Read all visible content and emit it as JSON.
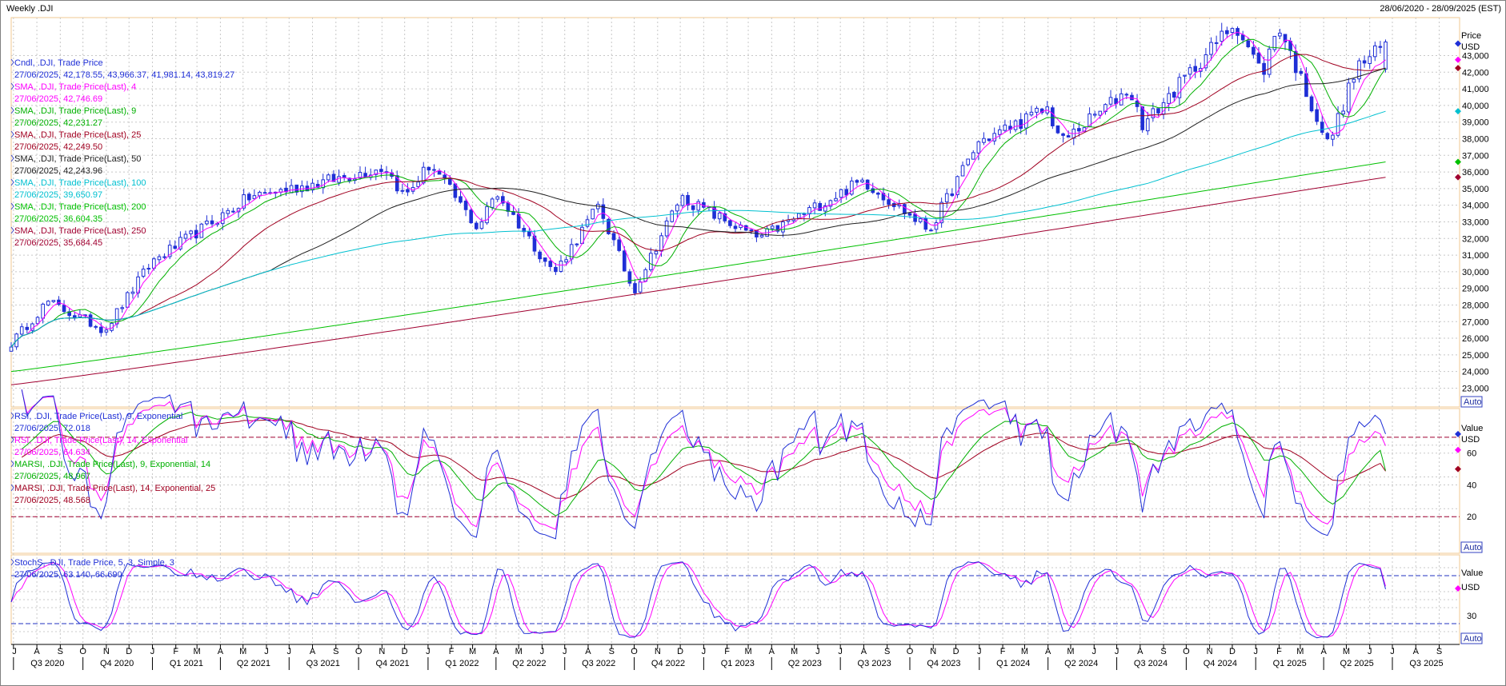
{
  "header": {
    "left_title": "Weekly .DJI",
    "date_range": "28/06/2020 - 28/09/2025 (EST)"
  },
  "colors": {
    "candle": "#1f2fd6",
    "sma4": "#ff00ff",
    "sma9": "#00b000",
    "sma25": "#a00020",
    "sma50": "#202020",
    "sma100": "#00c0d0",
    "sma200": "#00c000",
    "sma250": "#a00030",
    "rsi9": "#1f2fd6",
    "rsi14": "#ff00ff",
    "marsi9": "#00b000",
    "marsi14": "#a00020",
    "stoch_k": "#1f2fd6",
    "stoch_d": "#ff00ff",
    "grid": "#c8c8c8",
    "panel_border": "#f0c890"
  },
  "price_panel": {
    "axis_title": "Price",
    "axis_unit": "USD",
    "auto_label": "Auto",
    "legend": [
      {
        "name": "Cndl, .DJI, Trade Price",
        "value": "27/06/2025, 42,178.55, 43,966.37, 41,981.14, 43,819.27",
        "color_key": "candle"
      },
      {
        "name": "SMA, .DJI, Trade Price(Last), 4",
        "value": "27/06/2025, 42,746.69",
        "color_key": "sma4"
      },
      {
        "name": "SMA, .DJI, Trade Price(Last), 9",
        "value": "27/06/2025, 42,231.27",
        "color_key": "sma9"
      },
      {
        "name": "SMA, .DJI, Trade Price(Last), 25",
        "value": "27/06/2025, 42,249.50",
        "color_key": "sma25"
      },
      {
        "name": "SMA, .DJI, Trade Price(Last), 50",
        "value": "27/06/2025, 42,243.96",
        "color_key": "sma50"
      },
      {
        "name": "SMA, .DJI, Trade Price(Last), 100",
        "value": "27/06/2025, 39,650.97",
        "color_key": "sma100"
      },
      {
        "name": "SMA, .DJI, Trade Price(Last), 200",
        "value": "27/06/2025, 36,604.35",
        "color_key": "sma200"
      },
      {
        "name": "SMA, .DJI, Trade Price(Last), 250",
        "value": "27/06/2025, 35,684.45",
        "color_key": "sma250"
      }
    ],
    "y_ticks": [
      "23,000",
      "24,000",
      "25,000",
      "26,000",
      "27,000",
      "28,000",
      "29,000",
      "30,000",
      "31,000",
      "32,000",
      "33,000",
      "34,000",
      "35,000",
      "36,000",
      "37,000",
      "38,000",
      "39,000",
      "40,000",
      "41,000",
      "42,000",
      "43,000"
    ]
  },
  "rsi_panel": {
    "axis_title": "Value",
    "axis_unit": "USD",
    "auto_label": "Auto",
    "legend": [
      {
        "name": "RSI, .DJI, Trade Price(Last), 9, Exponential",
        "value": "27/06/2025, 72.018",
        "color_key": "rsi9"
      },
      {
        "name": "RSI, .DJI, Trade Price(Last), 14, Exponential",
        "value": "27/06/2025, 64.634",
        "color_key": "rsi14"
      },
      {
        "name": "MARSI, .DJI, Trade Price(Last), 9, Exponential, 14",
        "value": "27/06/2025, 48.967",
        "color_key": "marsi9"
      },
      {
        "name": "MARSI, .DJI, Trade Price(Last), 14, Exponential, 25",
        "value": "27/06/2025, 48.568",
        "color_key": "marsi14"
      }
    ],
    "y_ticks": [
      "20",
      "40",
      "60"
    ]
  },
  "stoch_panel": {
    "axis_title": "Value",
    "axis_unit": "USD",
    "auto_label": "Auto",
    "legend": [
      {
        "name": "StochS, .DJI, Trade Price, 5, 3, Simple, 3",
        "value": "27/06/2025, 63.140, 66.690",
        "color_key": "stoch_k"
      }
    ],
    "y_ticks": [
      "30"
    ]
  },
  "x_axis": {
    "months": [
      "J",
      "A",
      "S",
      "O",
      "N",
      "D",
      "J",
      "F",
      "M",
      "A",
      "M",
      "J",
      "J",
      "A",
      "S",
      "O",
      "N",
      "D",
      "J",
      "F",
      "M",
      "A",
      "M",
      "J",
      "J",
      "A",
      "S",
      "O",
      "N",
      "D",
      "J",
      "F",
      "M",
      "A",
      "M",
      "J",
      "J",
      "A",
      "S",
      "O",
      "N",
      "D",
      "J",
      "F",
      "M",
      "A",
      "M",
      "J",
      "J",
      "A",
      "S",
      "O",
      "N",
      "D",
      "J",
      "F",
      "M",
      "A",
      "M",
      "J",
      "J",
      "A",
      "S"
    ],
    "quarters": [
      "Q3 2020",
      "Q4 2020",
      "Q1 2021",
      "Q2 2021",
      "Q3 2021",
      "Q4 2021",
      "Q1 2022",
      "Q2 2022",
      "Q3 2022",
      "Q4 2022",
      "Q1 2023",
      "Q2 2023",
      "Q3 2023",
      "Q4 2023",
      "Q1 2024",
      "Q2 2024",
      "Q3 2024",
      "Q4 2024",
      "Q1 2025",
      "Q2 2025",
      "Q3 2025"
    ]
  },
  "chart_data": {
    "type": "line",
    "period": "weekly",
    "x_range": [
      "2020-06-28",
      "2025-09-28"
    ],
    "price_key_points": [
      [
        "2020-06-28",
        25700
      ],
      [
        "2020-08-15",
        28200
      ],
      [
        "2020-10-30",
        26500
      ],
      [
        "2020-12-31",
        30600
      ],
      [
        "2021-03-15",
        32800
      ],
      [
        "2021-05-10",
        34500
      ],
      [
        "2021-08-15",
        35400
      ],
      [
        "2021-11-05",
        36300
      ],
      [
        "2021-12-01",
        34500
      ],
      [
        "2022-01-04",
        36500
      ],
      [
        "2022-03-08",
        32600
      ],
      [
        "2022-04-01",
        34800
      ],
      [
        "2022-06-17",
        29900
      ],
      [
        "2022-08-15",
        34000
      ],
      [
        "2022-09-30",
        28800
      ],
      [
        "2022-12-01",
        34500
      ],
      [
        "2023-03-15",
        32000
      ],
      [
        "2023-07-31",
        35500
      ],
      [
        "2023-10-27",
        32500
      ],
      [
        "2023-12-31",
        37800
      ],
      [
        "2024-03-31",
        39800
      ],
      [
        "2024-04-19",
        37800
      ],
      [
        "2024-07-17",
        41000
      ],
      [
        "2024-08-05",
        38800
      ],
      [
        "2024-12-04",
        45000
      ],
      [
        "2025-01-10",
        41900
      ],
      [
        "2025-01-31",
        44900
      ],
      [
        "2025-04-07",
        37600
      ],
      [
        "2025-05-15",
        42300
      ],
      [
        "2025-06-27",
        43819
      ]
    ],
    "last_candle": {
      "date": "2025-06-27",
      "open": 42178.55,
      "high": 43966.37,
      "low": 41981.14,
      "close": 43819.27
    },
    "sma_last": {
      "sma4": 42746.69,
      "sma9": 42231.27,
      "sma25": 42249.5,
      "sma50": 42243.96,
      "sma100": 39650.97,
      "sma200": 36604.35,
      "sma250": 35684.45
    },
    "sma200_start": 24000,
    "sma250_start": 23200,
    "price_ylim": [
      22300,
      44900
    ],
    "rsi_ylim": [
      0,
      86
    ],
    "rsi_levels": [
      20,
      70
    ],
    "rsi_last": {
      "rsi9": 72.018,
      "rsi14": 64.634,
      "marsi9": 48.967,
      "marsi14": 48.568
    },
    "stoch_ylim": [
      0,
      100
    ],
    "stoch_levels": [
      20,
      80
    ],
    "stoch_last": {
      "k": 63.14,
      "d": 66.69
    }
  }
}
